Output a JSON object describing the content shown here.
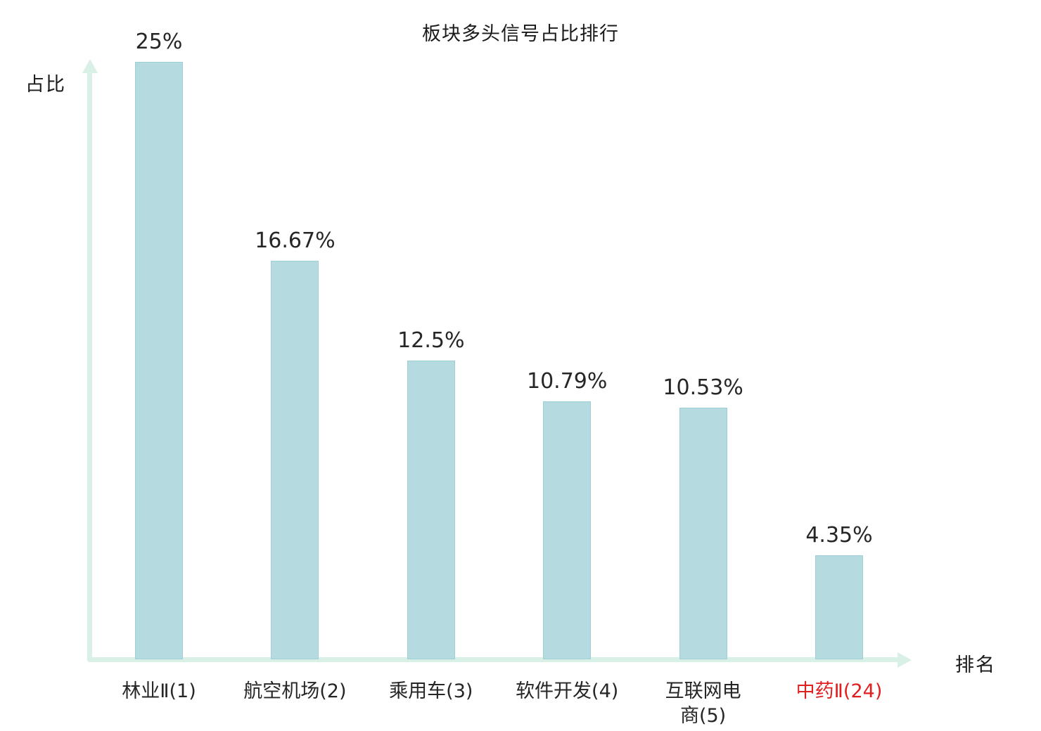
{
  "chart_data": {
    "type": "bar",
    "title": "板块多头信号占比排行",
    "ylabel": "占比",
    "xlabel": "排名",
    "categories": [
      "林业Ⅱ(1)",
      "航空机场(2)",
      "乘用车(3)",
      "软件开发(4)",
      "互联网电\n商(5)",
      "中药Ⅱ(24)"
    ],
    "values": [
      25,
      16.67,
      12.5,
      10.79,
      10.53,
      4.35
    ],
    "value_labels": [
      "25%",
      "16.67%",
      "12.5%",
      "10.79%",
      "10.53%",
      "4.35%"
    ],
    "category_colors": [
      "#262626",
      "#262626",
      "#262626",
      "#262626",
      "#262626",
      "#e01f1f"
    ],
    "ylim": [
      0,
      26
    ],
    "grid": false,
    "legend": "none",
    "style": {
      "bar_fill": "#b5dbe0",
      "bar_border": "#9ccfd6",
      "axis_color": "#d9f0e6",
      "text_color": "#262626",
      "highlight_color": "#e01f1f",
      "background": "#ffffff"
    }
  }
}
